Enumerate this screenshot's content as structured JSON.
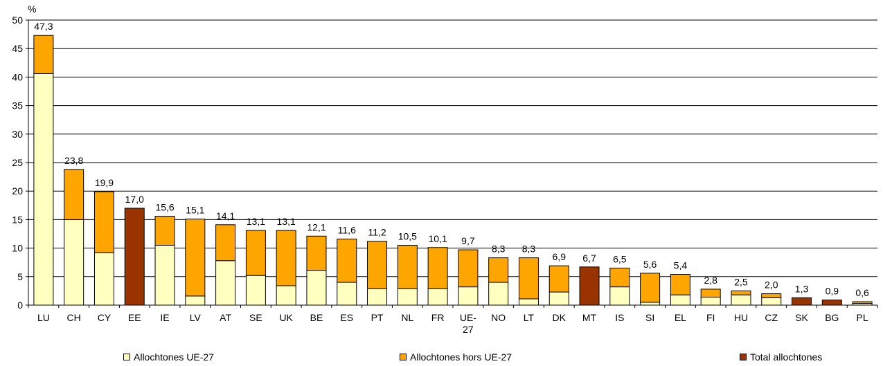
{
  "chart_data": {
    "type": "bar",
    "stacked": true,
    "ylabel": "%",
    "ylim": [
      0,
      50
    ],
    "yticks": [
      0,
      5,
      10,
      15,
      20,
      25,
      30,
      35,
      40,
      45,
      50
    ],
    "grid": true,
    "legend_position": "bottom",
    "categories": [
      "LU",
      "CH",
      "CY",
      "EE",
      "IE",
      "LV",
      "AT",
      "SE",
      "UK",
      "BE",
      "ES",
      "PT",
      "NL",
      "FR",
      "UE-27",
      "NO",
      "LT",
      "DK",
      "MT",
      "IS",
      "SI",
      "EL",
      "FI",
      "HU",
      "CZ",
      "SK",
      "BG",
      "PL"
    ],
    "series": [
      {
        "name": "Allochtones UE-27",
        "color": "#ffffc0",
        "values": [
          40.6,
          15.0,
          9.2,
          null,
          10.5,
          1.6,
          7.8,
          5.2,
          3.4,
          6.1,
          4.0,
          2.9,
          2.9,
          2.9,
          3.2,
          4.0,
          1.1,
          2.3,
          null,
          3.2,
          0.5,
          1.8,
          1.4,
          1.8,
          1.3,
          null,
          null,
          0.3
        ]
      },
      {
        "name": "Allochtones hors UE-27",
        "color": "#ffa500",
        "values": [
          6.7,
          8.8,
          10.7,
          null,
          5.1,
          13.5,
          6.3,
          7.9,
          9.7,
          6.0,
          7.6,
          8.3,
          7.6,
          7.2,
          6.5,
          4.3,
          7.2,
          4.6,
          null,
          3.3,
          5.1,
          3.6,
          1.4,
          0.7,
          0.7,
          null,
          null,
          0.3
        ]
      },
      {
        "name": "Total allochtones",
        "color": "#993300",
        "values": [
          null,
          null,
          null,
          17.0,
          null,
          null,
          null,
          null,
          null,
          null,
          null,
          null,
          null,
          null,
          null,
          null,
          null,
          null,
          6.7,
          null,
          null,
          null,
          null,
          null,
          null,
          1.3,
          0.9,
          null
        ]
      }
    ],
    "data_labels": [
      "47,3",
      "23,8",
      "19,9",
      "17,0",
      "15,6",
      "15,1",
      "14,1",
      "13,1",
      "13,1",
      "12,1",
      "11,6",
      "11,2",
      "10,5",
      "10,1",
      "9,7",
      "8,3",
      "8,3",
      "6,9",
      "6,7",
      "6,5",
      "5,6",
      "5,4",
      "2,8",
      "2,5",
      "2,0",
      "1,3",
      "0,9",
      "0,6"
    ]
  }
}
